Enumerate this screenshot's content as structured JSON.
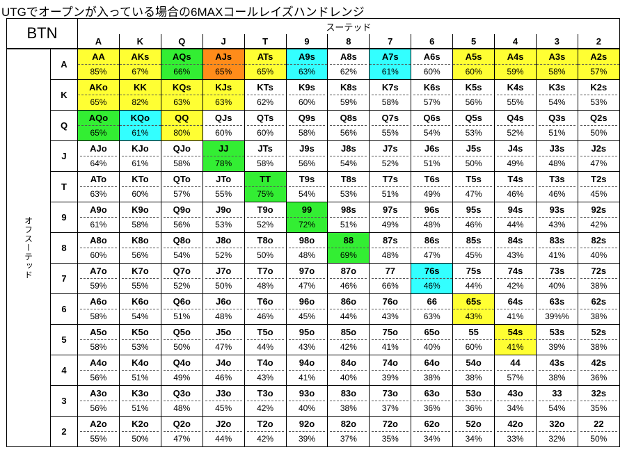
{
  "title": "UTGでオープンが入っている場合の6MAXコールレイズハンドレンジ",
  "corner_label": "BTN",
  "suited_label": "スーテッド",
  "offsuit_label": "オフスーテッド",
  "colors": {
    "yellow": "#ffff33",
    "green": "#33ee33",
    "cyan": "#33ffff",
    "orange": "#ff8c1a"
  },
  "chart_data": {
    "type": "table",
    "columns": [
      "A",
      "K",
      "Q",
      "J",
      "T",
      "9",
      "8",
      "7",
      "6",
      "5",
      "4",
      "3",
      "2"
    ],
    "rows": [
      {
        "label": "A",
        "cells": [
          {
            "hand": "AA",
            "pct": "85%",
            "color": "yellow",
            "hl": "both"
          },
          {
            "hand": "AKs",
            "pct": "67%",
            "color": "yellow",
            "hl": "both"
          },
          {
            "hand": "AQs",
            "pct": "66%",
            "color": "green",
            "hl": "both"
          },
          {
            "hand": "AJs",
            "pct": "65%",
            "color": "orange",
            "hl": "both"
          },
          {
            "hand": "ATs",
            "pct": "65%",
            "color": "yellow",
            "hl": "both"
          },
          {
            "hand": "A9s",
            "pct": "63%",
            "color": "cyan",
            "hl": "both"
          },
          {
            "hand": "A8s",
            "pct": "62%"
          },
          {
            "hand": "A7s",
            "pct": "61%",
            "color": "cyan",
            "hl": "both"
          },
          {
            "hand": "A6s",
            "pct": "60%"
          },
          {
            "hand": "A5s",
            "pct": "60%",
            "color": "yellow",
            "hl": "both"
          },
          {
            "hand": "A4s",
            "pct": "59%",
            "color": "yellow",
            "hl": "both"
          },
          {
            "hand": "A3s",
            "pct": "58%",
            "color": "yellow",
            "hl": "both"
          },
          {
            "hand": "A2s",
            "pct": "57%",
            "color": "yellow",
            "hl": "both"
          }
        ]
      },
      {
        "label": "K",
        "cells": [
          {
            "hand": "AKo",
            "pct": "65%",
            "color": "yellow",
            "hl": "both"
          },
          {
            "hand": "KK",
            "pct": "82%",
            "color": "yellow",
            "hl": "both"
          },
          {
            "hand": "KQs",
            "pct": "63%",
            "color": "yellow",
            "hl": "both"
          },
          {
            "hand": "KJs",
            "pct": "63%",
            "color": "yellow",
            "hl": "both"
          },
          {
            "hand": "KTs",
            "pct": "62%"
          },
          {
            "hand": "K9s",
            "pct": "60%"
          },
          {
            "hand": "K8s",
            "pct": "59%"
          },
          {
            "hand": "K7s",
            "pct": "58%"
          },
          {
            "hand": "K6s",
            "pct": "57%"
          },
          {
            "hand": "K5s",
            "pct": "56%"
          },
          {
            "hand": "K4s",
            "pct": "55%"
          },
          {
            "hand": "K3s",
            "pct": "54%"
          },
          {
            "hand": "K2s",
            "pct": "53%"
          }
        ]
      },
      {
        "label": "Q",
        "cells": [
          {
            "hand": "AQo",
            "pct": "65%",
            "color": "green",
            "hl": "both"
          },
          {
            "hand": "KQo",
            "pct": "61%",
            "color": "cyan",
            "hl": "both"
          },
          {
            "hand": "QQ",
            "pct": "80%",
            "color": "yellow",
            "hl": "both"
          },
          {
            "hand": "QJs",
            "pct": "60%"
          },
          {
            "hand": "QTs",
            "pct": "60%"
          },
          {
            "hand": "Q9s",
            "pct": "58%"
          },
          {
            "hand": "Q8s",
            "pct": "56%"
          },
          {
            "hand": "Q7s",
            "pct": "55%"
          },
          {
            "hand": "Q6s",
            "pct": "54%"
          },
          {
            "hand": "Q5s",
            "pct": "53%"
          },
          {
            "hand": "Q4s",
            "pct": "52%"
          },
          {
            "hand": "Q3s",
            "pct": "51%"
          },
          {
            "hand": "Q2s",
            "pct": "50%"
          }
        ]
      },
      {
        "label": "J",
        "cells": [
          {
            "hand": "AJo",
            "pct": "64%"
          },
          {
            "hand": "KJo",
            "pct": "61%"
          },
          {
            "hand": "QJo",
            "pct": "58%"
          },
          {
            "hand": "JJ",
            "pct": "78%",
            "color": "green",
            "hl": "both"
          },
          {
            "hand": "JTs",
            "pct": "58%"
          },
          {
            "hand": "J9s",
            "pct": "56%"
          },
          {
            "hand": "J8s",
            "pct": "54%"
          },
          {
            "hand": "J7s",
            "pct": "52%"
          },
          {
            "hand": "J6s",
            "pct": "51%"
          },
          {
            "hand": "J5s",
            "pct": "50%"
          },
          {
            "hand": "J4s",
            "pct": "49%"
          },
          {
            "hand": "J3s",
            "pct": "48%"
          },
          {
            "hand": "J2s",
            "pct": "47%"
          }
        ]
      },
      {
        "label": "T",
        "cells": [
          {
            "hand": "ATo",
            "pct": "63%"
          },
          {
            "hand": "KTo",
            "pct": "60%"
          },
          {
            "hand": "QTo",
            "pct": "57%"
          },
          {
            "hand": "JTo",
            "pct": "55%"
          },
          {
            "hand": "TT",
            "pct": "75%",
            "color": "green",
            "hl": "both"
          },
          {
            "hand": "T9s",
            "pct": "54%"
          },
          {
            "hand": "T8s",
            "pct": "53%"
          },
          {
            "hand": "T7s",
            "pct": "51%"
          },
          {
            "hand": "T6s",
            "pct": "49%"
          },
          {
            "hand": "T5s",
            "pct": "47%"
          },
          {
            "hand": "T4s",
            "pct": "46%"
          },
          {
            "hand": "T3s",
            "pct": "46%"
          },
          {
            "hand": "T2s",
            "pct": "45%"
          }
        ]
      },
      {
        "label": "9",
        "cells": [
          {
            "hand": "A9o",
            "pct": "61%"
          },
          {
            "hand": "K9o",
            "pct": "58%"
          },
          {
            "hand": "Q9o",
            "pct": "56%"
          },
          {
            "hand": "J9o",
            "pct": "53%"
          },
          {
            "hand": "T9o",
            "pct": "52%"
          },
          {
            "hand": "99",
            "pct": "72%",
            "color": "green",
            "hl": "both"
          },
          {
            "hand": "98s",
            "pct": "51%"
          },
          {
            "hand": "97s",
            "pct": "49%"
          },
          {
            "hand": "96s",
            "pct": "48%"
          },
          {
            "hand": "95s",
            "pct": "46%"
          },
          {
            "hand": "94s",
            "pct": "44%"
          },
          {
            "hand": "93s",
            "pct": "43%"
          },
          {
            "hand": "92s",
            "pct": "42%"
          }
        ]
      },
      {
        "label": "8",
        "cells": [
          {
            "hand": "A8o",
            "pct": "60%"
          },
          {
            "hand": "K8o",
            "pct": "56%"
          },
          {
            "hand": "Q8o",
            "pct": "54%"
          },
          {
            "hand": "J8o",
            "pct": "52%"
          },
          {
            "hand": "T8o",
            "pct": "50%"
          },
          {
            "hand": "98o",
            "pct": "48%"
          },
          {
            "hand": "88",
            "pct": "69%",
            "color": "green",
            "hl": "both"
          },
          {
            "hand": "87s",
            "pct": "48%"
          },
          {
            "hand": "86s",
            "pct": "47%"
          },
          {
            "hand": "85s",
            "pct": "45%"
          },
          {
            "hand": "84s",
            "pct": "43%"
          },
          {
            "hand": "83s",
            "pct": "41%"
          },
          {
            "hand": "82s",
            "pct": "40%"
          }
        ]
      },
      {
        "label": "7",
        "cells": [
          {
            "hand": "A7o",
            "pct": "59%"
          },
          {
            "hand": "K7o",
            "pct": "55%"
          },
          {
            "hand": "Q7o",
            "pct": "52%"
          },
          {
            "hand": "J7o",
            "pct": "50%"
          },
          {
            "hand": "T7o",
            "pct": "48%"
          },
          {
            "hand": "97o",
            "pct": "47%"
          },
          {
            "hand": "87o",
            "pct": "46%"
          },
          {
            "hand": "77",
            "pct": "66%"
          },
          {
            "hand": "76s",
            "pct": "46%",
            "color": "cyan",
            "hl": "both"
          },
          {
            "hand": "75s",
            "pct": "44%"
          },
          {
            "hand": "74s",
            "pct": "42%"
          },
          {
            "hand": "73s",
            "pct": "40%"
          },
          {
            "hand": "72s",
            "pct": "38%"
          }
        ]
      },
      {
        "label": "6",
        "cells": [
          {
            "hand": "A6o",
            "pct": "58%"
          },
          {
            "hand": "K6o",
            "pct": "54%"
          },
          {
            "hand": "Q6o",
            "pct": "51%"
          },
          {
            "hand": "J6o",
            "pct": "48%"
          },
          {
            "hand": "T6o",
            "pct": "46%"
          },
          {
            "hand": "96o",
            "pct": "45%"
          },
          {
            "hand": "86o",
            "pct": "44%"
          },
          {
            "hand": "76o",
            "pct": "43%"
          },
          {
            "hand": "66",
            "pct": "63%"
          },
          {
            "hand": "65s",
            "pct": "43%",
            "color": "yellow",
            "hl": "both"
          },
          {
            "hand": "64s",
            "pct": "41%"
          },
          {
            "hand": "63s",
            "pct": "39%%"
          },
          {
            "hand": "62s",
            "pct": "38%"
          }
        ]
      },
      {
        "label": "5",
        "cells": [
          {
            "hand": "A5o",
            "pct": "58%"
          },
          {
            "hand": "K5o",
            "pct": "53%"
          },
          {
            "hand": "Q5o",
            "pct": "50%"
          },
          {
            "hand": "J5o",
            "pct": "47%"
          },
          {
            "hand": "T5o",
            "pct": "44%"
          },
          {
            "hand": "95o",
            "pct": "43%"
          },
          {
            "hand": "85o",
            "pct": "42%"
          },
          {
            "hand": "75o",
            "pct": "41%"
          },
          {
            "hand": "65o",
            "pct": "40%"
          },
          {
            "hand": "55",
            "pct": "60%"
          },
          {
            "hand": "54s",
            "pct": "41%",
            "color": "yellow",
            "hl": "both"
          },
          {
            "hand": "53s",
            "pct": "39%"
          },
          {
            "hand": "52s",
            "pct": "38%"
          }
        ]
      },
      {
        "label": "4",
        "cells": [
          {
            "hand": "A4o",
            "pct": "56%"
          },
          {
            "hand": "K4o",
            "pct": "51%"
          },
          {
            "hand": "Q4o",
            "pct": "49%"
          },
          {
            "hand": "J4o",
            "pct": "46%"
          },
          {
            "hand": "T4o",
            "pct": "43%"
          },
          {
            "hand": "94o",
            "pct": "41%"
          },
          {
            "hand": "84o",
            "pct": "40%"
          },
          {
            "hand": "74o",
            "pct": "39%"
          },
          {
            "hand": "64o",
            "pct": "38%"
          },
          {
            "hand": "54o",
            "pct": "38%"
          },
          {
            "hand": "44",
            "pct": "57%"
          },
          {
            "hand": "43s",
            "pct": "38%"
          },
          {
            "hand": "42s",
            "pct": "36%"
          }
        ]
      },
      {
        "label": "3",
        "cells": [
          {
            "hand": "A3o",
            "pct": "56%"
          },
          {
            "hand": "K3o",
            "pct": "51%"
          },
          {
            "hand": "Q3o",
            "pct": "48%"
          },
          {
            "hand": "J3o",
            "pct": "45%"
          },
          {
            "hand": "T3o",
            "pct": "42%"
          },
          {
            "hand": "93o",
            "pct": "40%"
          },
          {
            "hand": "83o",
            "pct": "38%"
          },
          {
            "hand": "73o",
            "pct": "37%"
          },
          {
            "hand": "63o",
            "pct": "36%"
          },
          {
            "hand": "53o",
            "pct": "36%"
          },
          {
            "hand": "43o",
            "pct": "34%"
          },
          {
            "hand": "33",
            "pct": "54%"
          },
          {
            "hand": "32s",
            "pct": "35%"
          }
        ]
      },
      {
        "label": "2",
        "cells": [
          {
            "hand": "A2o",
            "pct": "55%"
          },
          {
            "hand": "K2o",
            "pct": "50%"
          },
          {
            "hand": "Q2o",
            "pct": "47%"
          },
          {
            "hand": "J2o",
            "pct": "44%"
          },
          {
            "hand": "T2o",
            "pct": "42%"
          },
          {
            "hand": "92o",
            "pct": "39%"
          },
          {
            "hand": "82o",
            "pct": "37%"
          },
          {
            "hand": "72o",
            "pct": "35%"
          },
          {
            "hand": "62o",
            "pct": "34%"
          },
          {
            "hand": "52o",
            "pct": "34%"
          },
          {
            "hand": "42o",
            "pct": "33%"
          },
          {
            "hand": "32o",
            "pct": "32%"
          },
          {
            "hand": "22",
            "pct": "50%"
          }
        ]
      }
    ]
  }
}
